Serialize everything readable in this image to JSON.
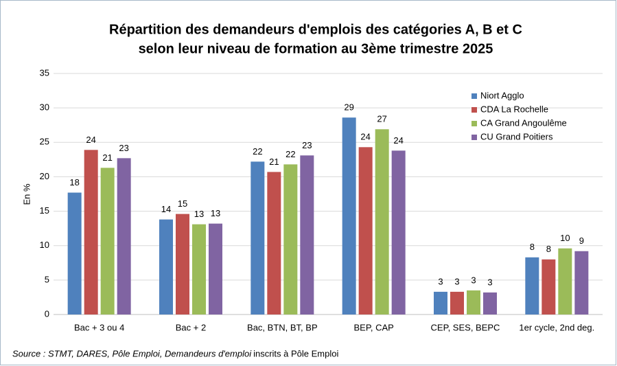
{
  "chart_data": {
    "type": "bar",
    "title": [
      "Répartition des demandeurs d'emplois des catégories A, B et C",
      "selon leur niveau de formation au 3ème trimestre 2025"
    ],
    "y_label": "En %",
    "categories": [
      "Bac + 3 ou 4",
      "Bac + 2",
      "Bac, BTN, BT, BP",
      "BEP, CAP",
      "CEP, SES, BEPC",
      "1er cycle, 2nd deg."
    ],
    "series": [
      {
        "name": "Niort Agglo",
        "color": "#4f81bd",
        "values": [
          17.7,
          13.8,
          22.2,
          28.6,
          3.3,
          8.3
        ],
        "value_labels": [
          "18",
          "14",
          "22",
          "29",
          "3",
          "8"
        ]
      },
      {
        "name": "CDA La Rochelle",
        "color": "#c0504d",
        "values": [
          23.9,
          14.6,
          20.7,
          24.3,
          3.3,
          8.0
        ],
        "value_labels": [
          "24",
          "15",
          "21",
          "24",
          "3",
          "8"
        ]
      },
      {
        "name": "CA Grand Angoulême",
        "color": "#9bbb59",
        "values": [
          21.3,
          13.1,
          21.8,
          26.9,
          3.5,
          9.6
        ],
        "value_labels": [
          "21",
          "13",
          "22",
          "27",
          "3",
          "10"
        ]
      },
      {
        "name": "CU Grand Poitiers",
        "color": "#8064a2",
        "values": [
          22.7,
          13.2,
          23.1,
          23.8,
          3.2,
          9.2
        ],
        "value_labels": [
          "23",
          "13",
          "23",
          "24",
          "3",
          "9"
        ]
      }
    ],
    "ylim": [
      0,
      35
    ],
    "yticks": [
      0,
      5,
      10,
      15,
      20,
      25,
      30,
      35
    ],
    "grid": true,
    "legend": "upper right",
    "source": [
      "Source : STMT, DARES, Pôle Emploi, Demandeurs d'emploi",
      "inscrits à Pôle Emploi"
    ]
  }
}
